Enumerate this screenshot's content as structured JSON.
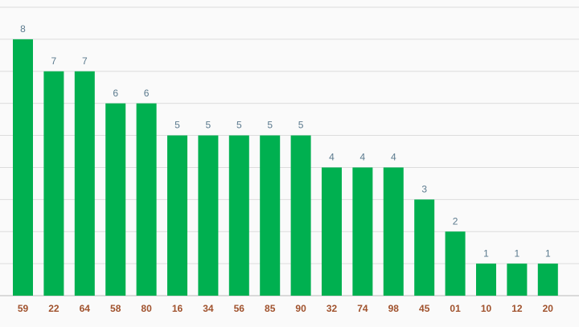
{
  "chart_data": {
    "type": "bar",
    "categories": [
      "59",
      "22",
      "64",
      "58",
      "80",
      "16",
      "34",
      "56",
      "85",
      "90",
      "32",
      "74",
      "98",
      "45",
      "01",
      "10",
      "12",
      "20"
    ],
    "values": [
      8,
      7,
      7,
      6,
      6,
      5,
      5,
      5,
      5,
      5,
      4,
      4,
      4,
      3,
      2,
      1,
      1,
      1
    ],
    "color": "#00b050",
    "ylim": [
      0,
      9
    ],
    "yticks": [
      0,
      1,
      2,
      3,
      4,
      5,
      6,
      7,
      8,
      9
    ],
    "grid": true
  }
}
